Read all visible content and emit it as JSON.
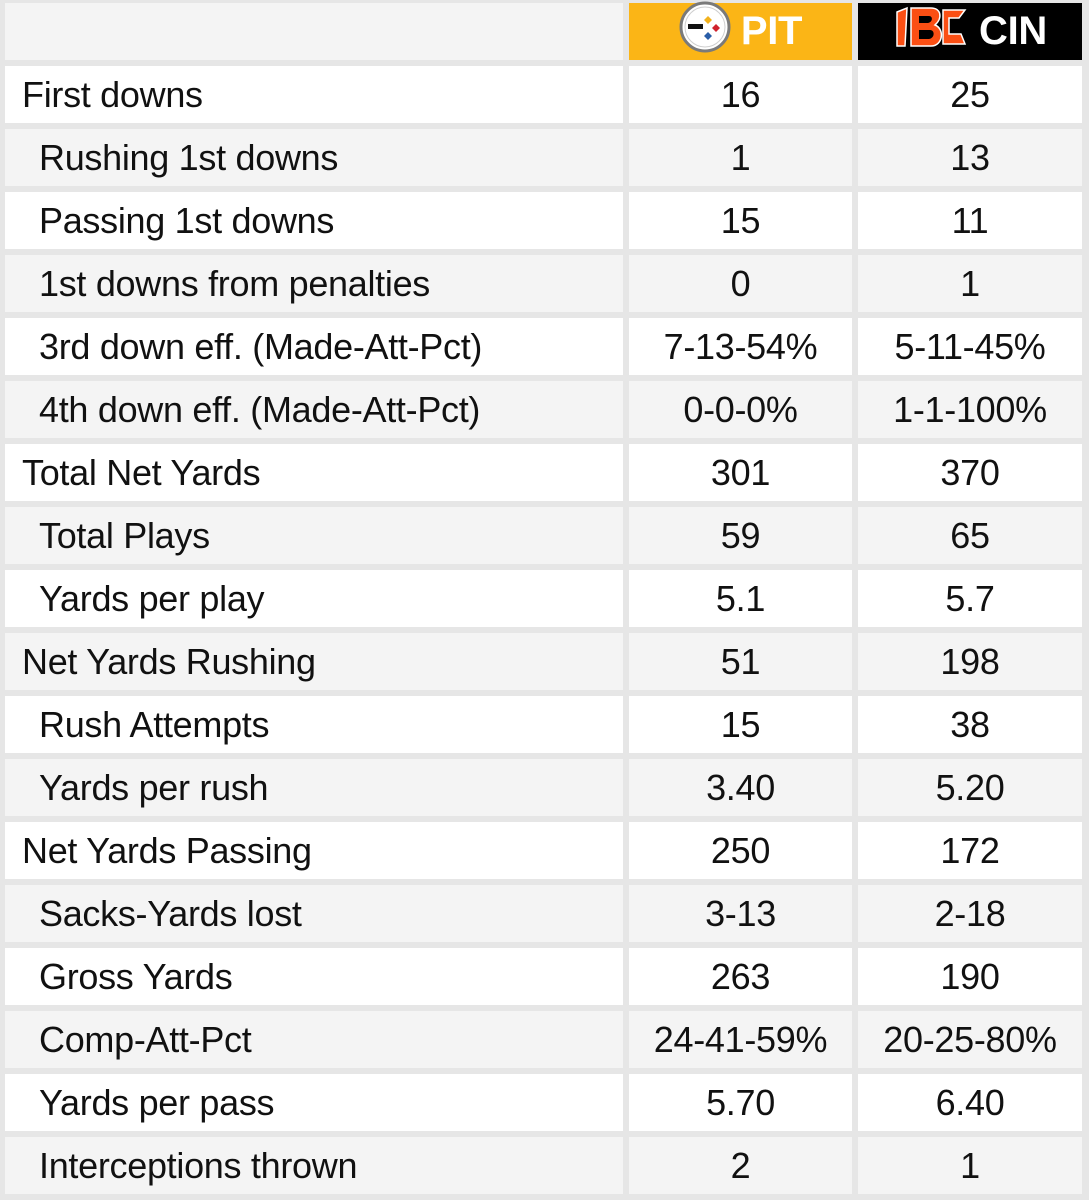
{
  "teams": {
    "pit": {
      "abbr": "PIT",
      "logo": "steelers-logo-icon",
      "color": "#fbb516"
    },
    "cin": {
      "abbr": "CIN",
      "logo": "bengals-logo-icon",
      "color": "#000000"
    }
  },
  "stats": [
    {
      "label": "First downs",
      "pit": "16",
      "cin": "25",
      "sub": false
    },
    {
      "label": "Rushing 1st downs",
      "pit": "1",
      "cin": "13",
      "sub": true
    },
    {
      "label": "Passing 1st downs",
      "pit": "15",
      "cin": "11",
      "sub": true
    },
    {
      "label": "1st downs from penalties",
      "pit": "0",
      "cin": "1",
      "sub": true
    },
    {
      "label": "3rd down eff. (Made-Att-Pct)",
      "pit": "7-13-54%",
      "cin": "5-11-45%",
      "sub": true
    },
    {
      "label": "4th down eff. (Made-Att-Pct)",
      "pit": "0-0-0%",
      "cin": "1-1-100%",
      "sub": true
    },
    {
      "label": "Total Net Yards",
      "pit": "301",
      "cin": "370",
      "sub": false
    },
    {
      "label": "Total Plays",
      "pit": "59",
      "cin": "65",
      "sub": true
    },
    {
      "label": "Yards per play",
      "pit": "5.1",
      "cin": "5.7",
      "sub": true
    },
    {
      "label": "Net Yards Rushing",
      "pit": "51",
      "cin": "198",
      "sub": false
    },
    {
      "label": "Rush Attempts",
      "pit": "15",
      "cin": "38",
      "sub": true
    },
    {
      "label": "Yards per rush",
      "pit": "3.40",
      "cin": "5.20",
      "sub": true
    },
    {
      "label": "Net Yards Passing",
      "pit": "250",
      "cin": "172",
      "sub": false
    },
    {
      "label": "Sacks-Yards lost",
      "pit": "3-13",
      "cin": "2-18",
      "sub": true
    },
    {
      "label": "Gross Yards",
      "pit": "263",
      "cin": "190",
      "sub": true
    },
    {
      "label": "Comp-Att-Pct",
      "pit": "24-41-59%",
      "cin": "20-25-80%",
      "sub": true
    },
    {
      "label": "Yards per pass",
      "pit": "5.70",
      "cin": "6.40",
      "sub": true
    },
    {
      "label": "Interceptions thrown",
      "pit": "2",
      "cin": "1",
      "sub": true
    }
  ]
}
